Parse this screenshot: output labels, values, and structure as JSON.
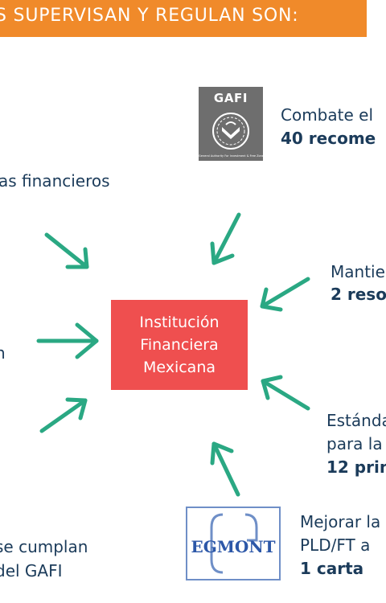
{
  "banner": {
    "text": "S SUPERVISAN Y REGULAN SON:"
  },
  "center": {
    "lines": [
      "Institución",
      "Financiera",
      "Mexicana"
    ]
  },
  "gafi": {
    "logo_text": "GAFI",
    "subtitle": "General Authority For Investment & Free Zones",
    "desc_line1": "Combate el",
    "desc_line2": "40 recome"
  },
  "right_top": {
    "line1": "Mantie",
    "line2": "2 reso"
  },
  "right_mid": {
    "line1": "Estánda",
    "line2": "para la",
    "line3": "12 prin"
  },
  "egmont": {
    "logo_text": "EGMONT",
    "desc_line1": "Mejorar la",
    "desc_line2": "PLD/FT a",
    "desc_line3": "1 carta"
  },
  "left": {
    "top_text": "as financieros",
    "mid_text": "n",
    "bottom_line1": "se cumplan",
    "bottom_line2": "del GAFI"
  },
  "colors": {
    "banner": "#f08a2a",
    "center_box": "#ef4f4f",
    "arrow": "#2aa883",
    "text": "#1b3b5a"
  }
}
